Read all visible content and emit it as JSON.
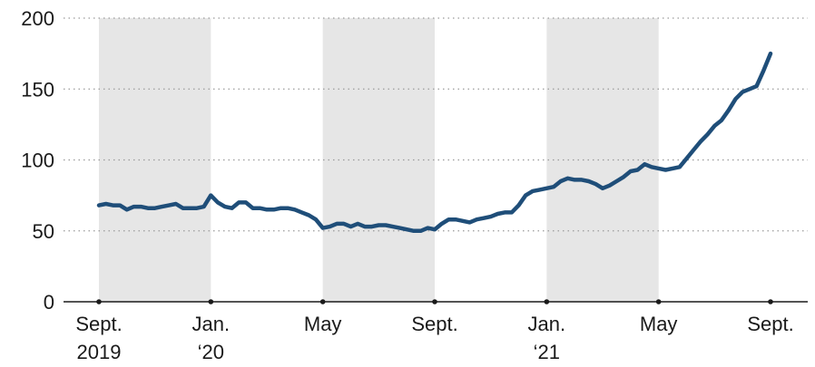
{
  "chart_data": {
    "type": "line",
    "title": "",
    "xlabel": "",
    "ylabel": "",
    "ylim": [
      0,
      200
    ],
    "yticks": [
      "0",
      "50",
      "100",
      "150",
      "200"
    ],
    "grid": true,
    "legend": "none",
    "x_tick_labels": [
      {
        "line1": "Sept.",
        "line2": "2019",
        "date": "2019-09"
      },
      {
        "line1": "Jan.",
        "line2": "‘20",
        "date": "2020-01"
      },
      {
        "line1": "May",
        "line2": "",
        "date": "2020-05"
      },
      {
        "line1": "Sept.",
        "line2": "",
        "date": "2020-09"
      },
      {
        "line1": "Jan.",
        "line2": "‘21",
        "date": "2021-01"
      },
      {
        "line1": "May",
        "line2": "",
        "date": "2021-05"
      },
      {
        "line1": "Sept.",
        "line2": "",
        "date": "2021-09"
      }
    ],
    "shaded_periods": [
      [
        "2019-09",
        "2020-01"
      ],
      [
        "2020-05",
        "2020-09"
      ],
      [
        "2021-01",
        "2021-05"
      ]
    ],
    "colors": {
      "line": "#1f4e79",
      "band": "#e6e6e6"
    },
    "series": [
      {
        "color": "#1f4e79",
        "x": [
          "2019-09",
          "2019-09.25",
          "2019-09.5",
          "2019-09.75",
          "2019-10",
          "2019-10.25",
          "2019-10.5",
          "2019-10.75",
          "2019-11",
          "2019-11.25",
          "2019-11.5",
          "2019-11.75",
          "2019-12",
          "2019-12.25",
          "2019-12.5",
          "2019-12.75",
          "2020-01",
          "2020-01.25",
          "2020-01.5",
          "2020-01.75",
          "2020-02",
          "2020-02.25",
          "2020-02.5",
          "2020-02.75",
          "2020-03",
          "2020-03.25",
          "2020-03.5",
          "2020-03.75",
          "2020-04",
          "2020-04.25",
          "2020-04.5",
          "2020-04.75",
          "2020-05",
          "2020-05.25",
          "2020-05.5",
          "2020-05.75",
          "2020-06",
          "2020-06.25",
          "2020-06.5",
          "2020-06.75",
          "2020-07",
          "2020-07.25",
          "2020-07.5",
          "2020-07.75",
          "2020-08",
          "2020-08.25",
          "2020-08.5",
          "2020-08.75",
          "2020-09",
          "2020-09.25",
          "2020-09.5",
          "2020-09.75",
          "2020-10",
          "2020-10.25",
          "2020-10.5",
          "2020-10.75",
          "2020-11",
          "2020-11.25",
          "2020-11.5",
          "2020-11.75",
          "2020-12",
          "2020-12.25",
          "2020-12.5",
          "2020-12.75",
          "2021-01",
          "2021-01.25",
          "2021-01.5",
          "2021-01.75",
          "2021-02",
          "2021-02.25",
          "2021-02.5",
          "2021-02.75",
          "2021-03",
          "2021-03.25",
          "2021-03.5",
          "2021-03.75",
          "2021-04",
          "2021-04.25",
          "2021-04.5",
          "2021-04.75",
          "2021-05",
          "2021-05.25",
          "2021-05.5",
          "2021-05.75",
          "2021-06",
          "2021-06.25",
          "2021-06.5",
          "2021-06.75",
          "2021-07",
          "2021-07.25",
          "2021-07.5",
          "2021-07.75",
          "2021-08",
          "2021-08.25",
          "2021-08.5",
          "2021-08.75",
          "2021-09"
        ],
        "values": [
          68,
          69,
          68,
          68,
          65,
          67,
          67,
          66,
          66,
          67,
          68,
          69,
          66,
          66,
          66,
          67,
          75,
          70,
          67,
          66,
          70,
          70,
          66,
          66,
          65,
          65,
          66,
          66,
          65,
          63,
          61,
          58,
          52,
          53,
          55,
          55,
          53,
          55,
          53,
          53,
          54,
          54,
          53,
          52,
          51,
          50,
          50,
          52,
          51,
          55,
          58,
          58,
          57,
          56,
          58,
          59,
          60,
          62,
          63,
          63,
          68,
          75,
          78,
          79,
          80,
          81,
          85,
          87,
          86,
          86,
          85,
          83,
          80,
          82,
          85,
          88,
          92,
          93,
          97,
          95,
          94,
          93,
          94,
          95,
          101,
          107,
          113,
          118,
          124,
          128,
          135,
          143,
          148,
          150,
          152,
          163,
          175
        ]
      }
    ]
  }
}
